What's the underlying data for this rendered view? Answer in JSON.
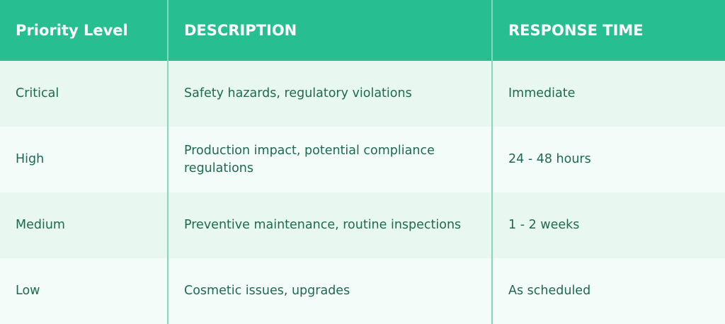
{
  "table": {
    "header": [
      "Priority Level",
      "DESCRIPTION",
      "RESPONSE TIME"
    ],
    "rows": [
      [
        "Critical",
        "Safety hazards, regulatory violations",
        "Immediate"
      ],
      [
        "High",
        "Production impact, potential compliance regulations",
        "24 - 48 hours"
      ],
      [
        "Medium",
        "Preventive maintenance, routine inspections",
        "1 - 2 weeks"
      ],
      [
        "Low",
        "Cosmetic issues, upgrades",
        "As scheduled"
      ]
    ]
  }
}
